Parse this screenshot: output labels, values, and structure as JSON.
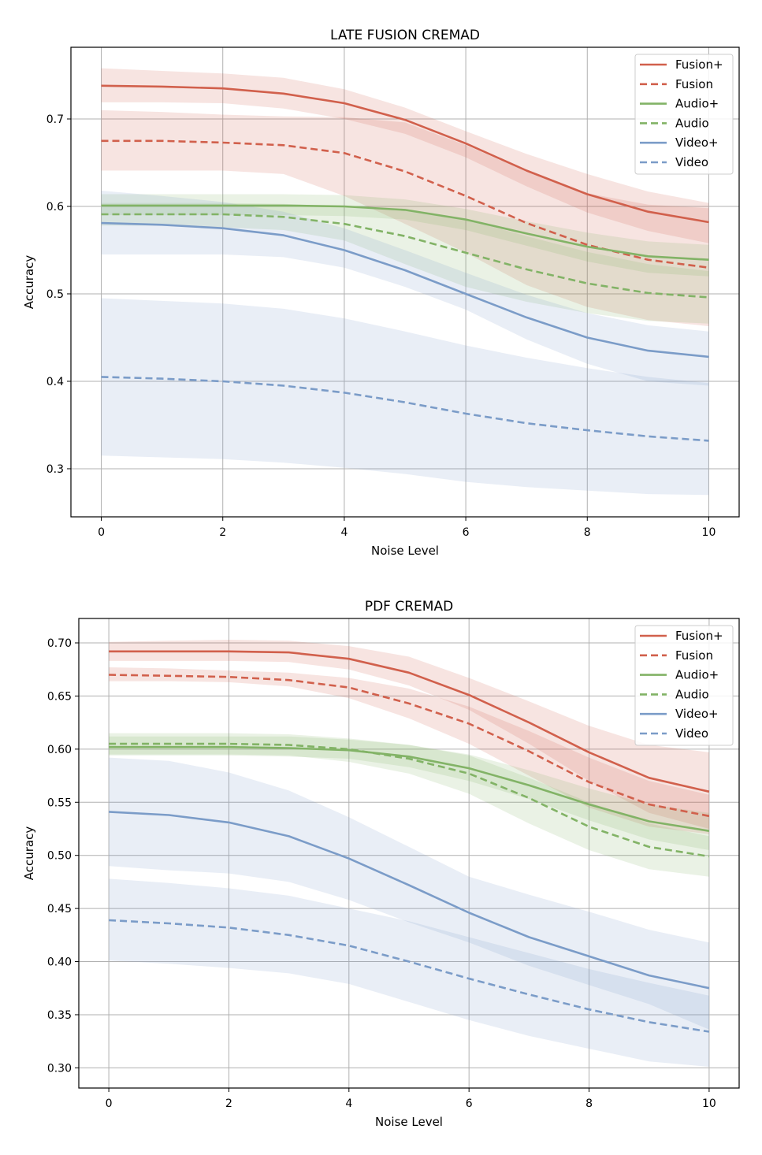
{
  "colors": {
    "fusion": "#d1604c",
    "audio": "#82b366",
    "video": "#7b9cc8"
  },
  "chart_data": [
    {
      "type": "line",
      "title": "LATE FUSION CREMAD",
      "xlabel": "Noise Level",
      "ylabel": "Accuracy",
      "xlim": [
        -0.5,
        10.5
      ],
      "ylim": [
        0.245,
        0.782
      ],
      "xticks": [
        0,
        2,
        4,
        6,
        8,
        10
      ],
      "yticks": [
        0.3,
        0.4,
        0.5,
        0.6,
        0.7
      ],
      "ytick_labels": [
        "0.3",
        "0.4",
        "0.5",
        "0.6",
        "0.7"
      ],
      "grid": true,
      "legend_position": "top-right",
      "x": [
        0,
        1,
        2,
        3,
        4,
        5,
        6,
        7,
        8,
        9,
        10
      ],
      "series": [
        {
          "name": "Fusion+",
          "color_key": "fusion",
          "dashed": false,
          "values": [
            0.738,
            0.737,
            0.735,
            0.729,
            0.718,
            0.699,
            0.672,
            0.641,
            0.614,
            0.594,
            0.582
          ],
          "lower": [
            0.719,
            0.719,
            0.718,
            0.712,
            0.7,
            0.683,
            0.656,
            0.623,
            0.593,
            0.572,
            0.558
          ],
          "upper": [
            0.758,
            0.755,
            0.752,
            0.747,
            0.734,
            0.713,
            0.686,
            0.66,
            0.637,
            0.617,
            0.604
          ]
        },
        {
          "name": "Fusion",
          "color_key": "fusion",
          "dashed": true,
          "values": [
            0.675,
            0.675,
            0.673,
            0.67,
            0.661,
            0.64,
            0.612,
            0.581,
            0.556,
            0.539,
            0.53
          ],
          "lower": [
            0.641,
            0.641,
            0.641,
            0.637,
            0.612,
            0.58,
            0.547,
            0.51,
            0.485,
            0.47,
            0.463
          ],
          "upper": [
            0.71,
            0.708,
            0.705,
            0.703,
            0.702,
            0.696,
            0.67,
            0.64,
            0.615,
            0.602,
            0.598
          ]
        },
        {
          "name": "Audio+",
          "color_key": "audio",
          "dashed": false,
          "values": [
            0.601,
            0.601,
            0.601,
            0.601,
            0.6,
            0.596,
            0.585,
            0.569,
            0.554,
            0.543,
            0.539
          ],
          "lower": [
            0.59,
            0.59,
            0.59,
            0.59,
            0.589,
            0.585,
            0.573,
            0.555,
            0.537,
            0.524,
            0.52
          ],
          "upper": [
            0.614,
            0.614,
            0.614,
            0.614,
            0.613,
            0.608,
            0.597,
            0.583,
            0.57,
            0.56,
            0.556
          ]
        },
        {
          "name": "Audio",
          "color_key": "audio",
          "dashed": true,
          "values": [
            0.591,
            0.591,
            0.591,
            0.588,
            0.58,
            0.566,
            0.547,
            0.528,
            0.512,
            0.501,
            0.496
          ],
          "lower": [
            0.578,
            0.578,
            0.576,
            0.573,
            0.561,
            0.534,
            0.508,
            0.491,
            0.478,
            0.469,
            0.466
          ],
          "upper": [
            0.604,
            0.604,
            0.604,
            0.603,
            0.6,
            0.597,
            0.585,
            0.566,
            0.548,
            0.534,
            0.526
          ]
        },
        {
          "name": "Video+",
          "color_key": "video",
          "dashed": false,
          "values": [
            0.581,
            0.579,
            0.575,
            0.567,
            0.55,
            0.527,
            0.5,
            0.473,
            0.45,
            0.435,
            0.428
          ],
          "lower": [
            0.545,
            0.545,
            0.545,
            0.542,
            0.53,
            0.508,
            0.482,
            0.448,
            0.42,
            0.4,
            0.395
          ],
          "upper": [
            0.618,
            0.612,
            0.605,
            0.594,
            0.575,
            0.55,
            0.524,
            0.499,
            0.478,
            0.464,
            0.457
          ]
        },
        {
          "name": "Video",
          "color_key": "video",
          "dashed": true,
          "values": [
            0.405,
            0.403,
            0.4,
            0.395,
            0.387,
            0.376,
            0.363,
            0.352,
            0.344,
            0.337,
            0.332
          ],
          "lower": [
            0.315,
            0.313,
            0.311,
            0.307,
            0.301,
            0.294,
            0.285,
            0.279,
            0.275,
            0.271,
            0.27
          ],
          "upper": [
            0.495,
            0.492,
            0.489,
            0.483,
            0.472,
            0.457,
            0.441,
            0.427,
            0.415,
            0.405,
            0.398
          ]
        }
      ]
    },
    {
      "type": "line",
      "title": "PDF CREMAD",
      "xlabel": "Noise Level",
      "ylabel": "Accuracy",
      "xlim": [
        -0.5,
        10.5
      ],
      "ylim": [
        0.281,
        0.723
      ],
      "xticks": [
        0,
        2,
        4,
        6,
        8,
        10
      ],
      "yticks": [
        0.3,
        0.35,
        0.4,
        0.45,
        0.5,
        0.55,
        0.6,
        0.65,
        0.7
      ],
      "ytick_labels": [
        "0.30",
        "0.35",
        "0.40",
        "0.45",
        "0.50",
        "0.55",
        "0.60",
        "0.65",
        "0.70"
      ],
      "grid": true,
      "legend_position": "top-right",
      "x": [
        0,
        1,
        2,
        3,
        4,
        5,
        6,
        7,
        8,
        9,
        10
      ],
      "series": [
        {
          "name": "Fusion+",
          "color_key": "fusion",
          "dashed": false,
          "values": [
            0.692,
            0.692,
            0.692,
            0.691,
            0.685,
            0.672,
            0.651,
            0.625,
            0.597,
            0.573,
            0.56
          ],
          "lower": [
            0.683,
            0.683,
            0.683,
            0.682,
            0.675,
            0.66,
            0.637,
            0.605,
            0.57,
            0.54,
            0.525
          ],
          "upper": [
            0.701,
            0.702,
            0.703,
            0.702,
            0.697,
            0.687,
            0.667,
            0.645,
            0.622,
            0.604,
            0.597
          ]
        },
        {
          "name": "Fusion",
          "color_key": "fusion",
          "dashed": true,
          "values": [
            0.67,
            0.669,
            0.668,
            0.665,
            0.658,
            0.643,
            0.624,
            0.598,
            0.569,
            0.548,
            0.537
          ],
          "lower": [
            0.664,
            0.664,
            0.663,
            0.659,
            0.648,
            0.629,
            0.605,
            0.575,
            0.545,
            0.527,
            0.52
          ],
          "upper": [
            0.677,
            0.676,
            0.674,
            0.672,
            0.667,
            0.657,
            0.64,
            0.617,
            0.592,
            0.57,
            0.557
          ]
        },
        {
          "name": "Audio+",
          "color_key": "audio",
          "dashed": false,
          "values": [
            0.602,
            0.602,
            0.602,
            0.601,
            0.599,
            0.593,
            0.582,
            0.566,
            0.548,
            0.532,
            0.523
          ],
          "lower": [
            0.594,
            0.594,
            0.594,
            0.593,
            0.591,
            0.583,
            0.57,
            0.553,
            0.533,
            0.515,
            0.505
          ],
          "upper": [
            0.612,
            0.612,
            0.612,
            0.612,
            0.609,
            0.604,
            0.595,
            0.58,
            0.563,
            0.548,
            0.54
          ]
        },
        {
          "name": "Audio",
          "color_key": "audio",
          "dashed": true,
          "values": [
            0.605,
            0.605,
            0.605,
            0.604,
            0.6,
            0.591,
            0.577,
            0.554,
            0.527,
            0.508,
            0.499
          ],
          "lower": [
            0.595,
            0.595,
            0.595,
            0.594,
            0.588,
            0.577,
            0.558,
            0.53,
            0.505,
            0.487,
            0.48
          ],
          "upper": [
            0.615,
            0.615,
            0.615,
            0.614,
            0.61,
            0.604,
            0.594,
            0.573,
            0.55,
            0.53,
            0.518
          ]
        },
        {
          "name": "Video+",
          "color_key": "video",
          "dashed": false,
          "values": [
            0.541,
            0.538,
            0.531,
            0.518,
            0.497,
            0.472,
            0.446,
            0.423,
            0.405,
            0.387,
            0.375
          ],
          "lower": [
            0.49,
            0.486,
            0.483,
            0.475,
            0.458,
            0.437,
            0.418,
            0.396,
            0.378,
            0.36,
            0.336
          ],
          "upper": [
            0.592,
            0.589,
            0.578,
            0.561,
            0.536,
            0.508,
            0.48,
            0.463,
            0.447,
            0.43,
            0.418
          ]
        },
        {
          "name": "Video",
          "color_key": "video",
          "dashed": true,
          "values": [
            0.439,
            0.436,
            0.432,
            0.425,
            0.415,
            0.4,
            0.384,
            0.369,
            0.355,
            0.343,
            0.334
          ],
          "lower": [
            0.401,
            0.398,
            0.394,
            0.389,
            0.379,
            0.362,
            0.345,
            0.33,
            0.318,
            0.306,
            0.301
          ],
          "upper": [
            0.478,
            0.474,
            0.469,
            0.462,
            0.45,
            0.438,
            0.423,
            0.408,
            0.393,
            0.38,
            0.368
          ]
        }
      ]
    }
  ]
}
